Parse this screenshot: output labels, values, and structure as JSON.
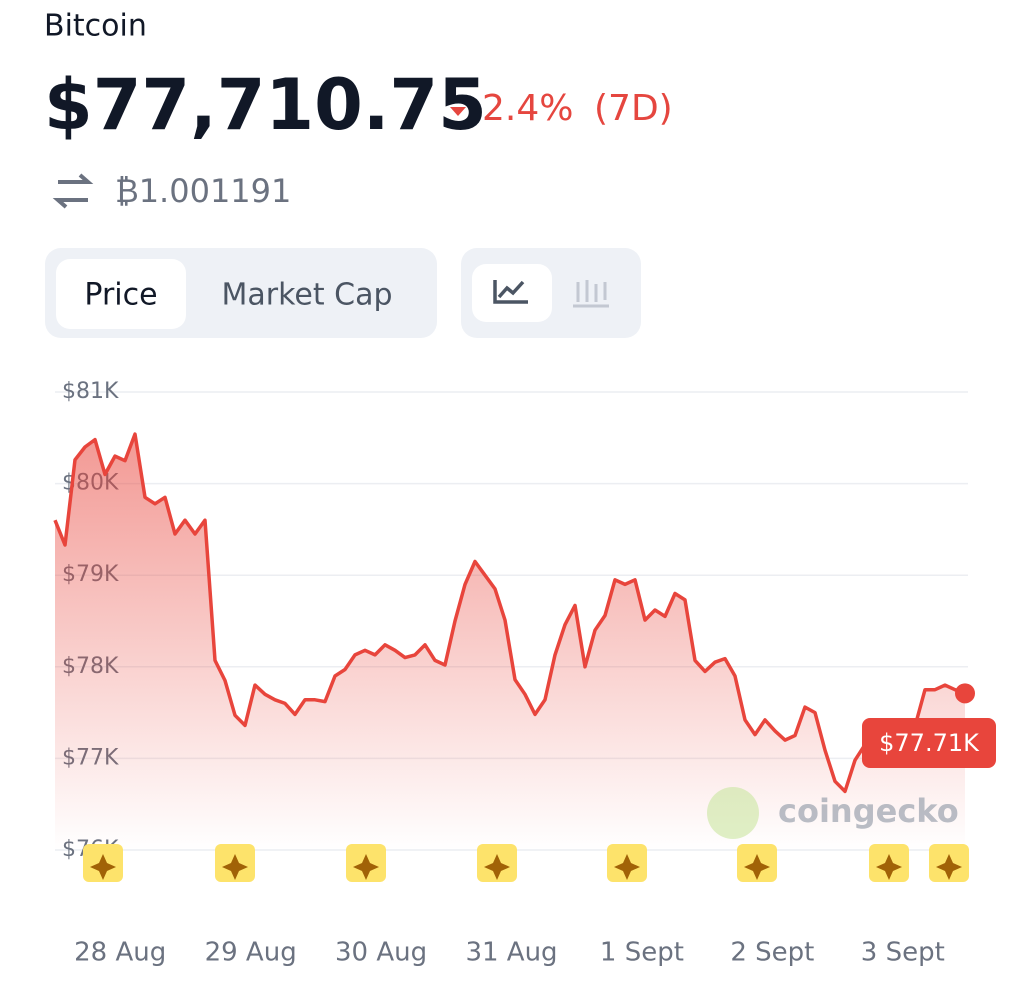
{
  "header": {
    "title": "Bitcoin",
    "price": "$77,710.75",
    "change": "2.4%",
    "change_period": "(7D)",
    "btc_price": "₿1.001191"
  },
  "tabs": [
    "Price",
    "Market Cap"
  ],
  "chart_data": {
    "type": "area",
    "x_labels": [
      "28 Aug",
      "29 Aug",
      "30 Aug",
      "31 Aug",
      "1 Sept",
      "2 Sept",
      "3 Sept"
    ],
    "values": [
      79600,
      79330,
      80260,
      80400,
      80480,
      80100,
      80300,
      80250,
      80540,
      79850,
      79780,
      79850,
      79450,
      79600,
      79450,
      79600,
      78070,
      77850,
      77470,
      77360,
      77800,
      77700,
      77640,
      77600,
      77480,
      77640,
      77640,
      77620,
      77900,
      77970,
      78130,
      78180,
      78130,
      78240,
      78180,
      78100,
      78130,
      78240,
      78070,
      78020,
      78500,
      78900,
      79150,
      79000,
      78850,
      78510,
      77860,
      77700,
      77480,
      77640,
      78130,
      78460,
      78670,
      78000,
      78400,
      78560,
      78950,
      78900,
      78950,
      78510,
      78620,
      78550,
      78800,
      78730,
      78070,
      77950,
      78050,
      78090,
      77900,
      77420,
      77260,
      77420,
      77300,
      77200,
      77250,
      77560,
      77500,
      77090,
      76750,
      76640,
      76980,
      77150,
      77200,
      77200,
      77200,
      77200,
      77350,
      77750,
      77750,
      77800,
      77750,
      77710
    ],
    "color": "#e8453c",
    "ylim": [
      76000,
      81000
    ],
    "yticks": [
      {
        "value": 81000,
        "label": "$81K"
      },
      {
        "value": 80000,
        "label": "$80K"
      },
      {
        "value": 79000,
        "label": "$79K"
      },
      {
        "value": 78000,
        "label": "$78K"
      },
      {
        "value": 77000,
        "label": "$77K"
      },
      {
        "value": 76000,
        "label": "$76K"
      }
    ],
    "grid": true,
    "current_label": "$77.71K",
    "watermark": "coingecko"
  }
}
